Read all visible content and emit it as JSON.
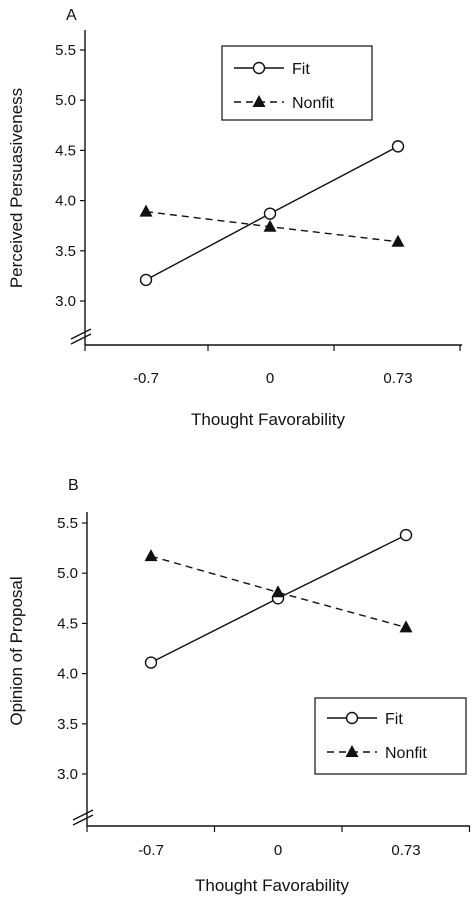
{
  "chart_data": [
    {
      "panel": "A",
      "type": "line",
      "categories": [
        "-0.7",
        "0",
        "0.73"
      ],
      "xlabel": "Thought Favorability",
      "ylabel": "Perceived Persuasiveness",
      "ylim": [
        3.0,
        5.5
      ],
      "yticks": [
        "3.0",
        "3.5",
        "4.0",
        "4.5",
        "5.0",
        "5.5"
      ],
      "axis_break": true,
      "grid": false,
      "legend": "top-right",
      "series": [
        {
          "name": "Fit",
          "values": [
            3.21,
            3.87,
            4.54
          ],
          "style": "solid",
          "marker": "open-circle"
        },
        {
          "name": "Nonfit",
          "values": [
            3.89,
            3.74,
            3.59
          ],
          "style": "dashed",
          "marker": "filled-triangle"
        }
      ]
    },
    {
      "panel": "B",
      "type": "line",
      "categories": [
        "-0.7",
        "0",
        "0.73"
      ],
      "xlabel": "Thought Favorability",
      "ylabel": "Opinion of Proposal",
      "ylim": [
        3.0,
        5.5
      ],
      "yticks": [
        "3.0",
        "3.5",
        "4.0",
        "4.5",
        "5.0",
        "5.5"
      ],
      "axis_break": true,
      "grid": false,
      "legend": "bottom-right",
      "series": [
        {
          "name": "Fit",
          "values": [
            4.11,
            4.75,
            5.38
          ],
          "style": "solid",
          "marker": "open-circle"
        },
        {
          "name": "Nonfit",
          "values": [
            5.17,
            4.81,
            4.46
          ],
          "style": "dashed",
          "marker": "filled-triangle"
        }
      ]
    }
  ]
}
